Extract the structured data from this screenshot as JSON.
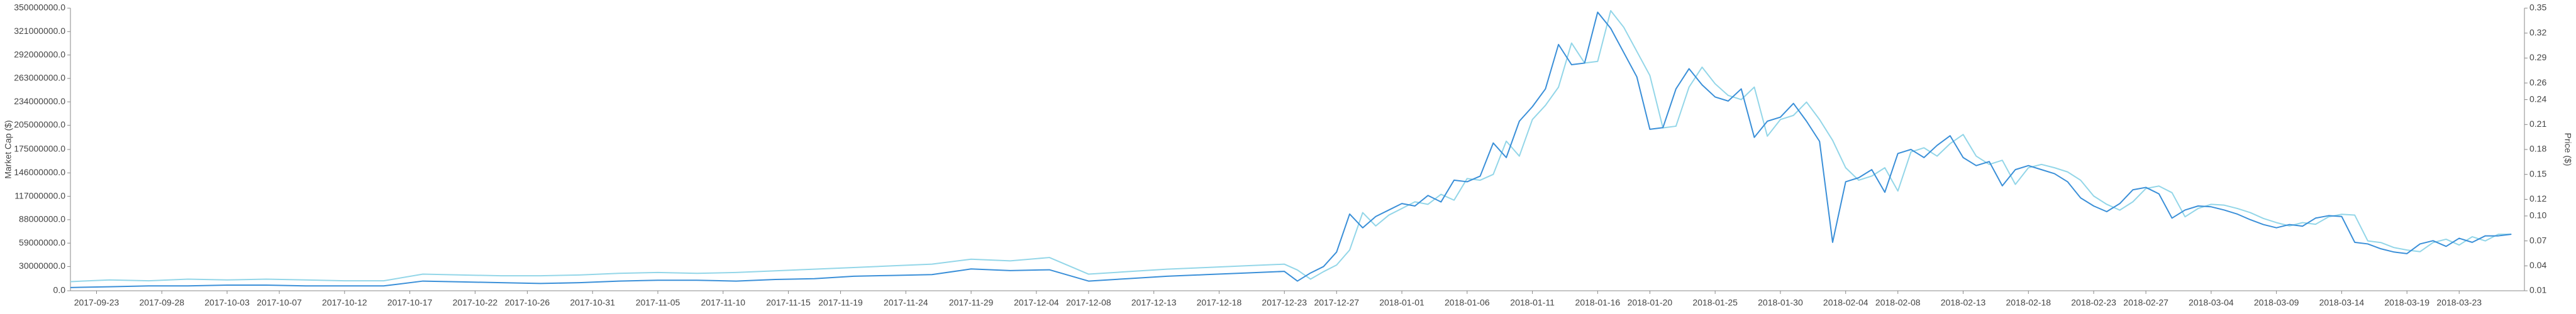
{
  "chart_data": {
    "type": "line",
    "y_label": "Market Cap ($)",
    "y2_label": "Price ($)",
    "grid": false,
    "xlim": [
      "2017-09-21",
      "2018-03-28"
    ],
    "xticks": [
      "2017-09-23",
      "2017-09-28",
      "2017-10-03",
      "2017-10-07",
      "2017-10-12",
      "2017-10-17",
      "2017-10-22",
      "2017-10-26",
      "2017-10-31",
      "2017-11-05",
      "2017-11-10",
      "2017-11-15",
      "2017-11-19",
      "2017-11-24",
      "2017-11-29",
      "2017-12-04",
      "2017-12-08",
      "2017-12-13",
      "2017-12-18",
      "2017-12-23",
      "2017-12-27",
      "2018-01-01",
      "2018-01-06",
      "2018-01-11",
      "2018-01-16",
      "2018-01-20",
      "2018-01-25",
      "2018-01-30",
      "2018-02-04",
      "2018-02-08",
      "2018-02-13",
      "2018-02-18",
      "2018-02-23",
      "2018-02-27",
      "2018-03-04",
      "2018-03-09",
      "2018-03-14",
      "2018-03-19",
      "2018-03-23"
    ],
    "ylim": [
      0,
      350000000
    ],
    "yticks": [
      {
        "value": 0,
        "label": "0.0"
      },
      {
        "value": 30000000,
        "label": "30000000.0"
      },
      {
        "value": 59000000,
        "label": "59000000.0"
      },
      {
        "value": 88000000,
        "label": "88000000.0"
      },
      {
        "value": 117000000,
        "label": "117000000.0"
      },
      {
        "value": 146000000,
        "label": "146000000.0"
      },
      {
        "value": 175000000,
        "label": "175000000.0"
      },
      {
        "value": 205000000,
        "label": "205000000.0"
      },
      {
        "value": 234000000,
        "label": "234000000.0"
      },
      {
        "value": 263000000,
        "label": "263000000.0"
      },
      {
        "value": 292000000,
        "label": "292000000.0"
      },
      {
        "value": 321000000,
        "label": "321000000.0"
      },
      {
        "value": 350000000,
        "label": "350000000.0"
      }
    ],
    "y2lim": [
      0.01,
      0.35
    ],
    "y2ticks": [
      0.01,
      0.04,
      0.07,
      {
        "value": 0.1,
        "label": "0.10"
      },
      0.12,
      0.15,
      0.18,
      0.21,
      0.24,
      0.26,
      0.29,
      0.32,
      0.35
    ],
    "x": [
      "2017-09-21",
      "2017-09-24",
      "2017-09-27",
      "2017-09-30",
      "2017-10-03",
      "2017-10-06",
      "2017-10-09",
      "2017-10-12",
      "2017-10-15",
      "2017-10-18",
      "2017-10-21",
      "2017-10-24",
      "2017-10-27",
      "2017-10-30",
      "2017-11-02",
      "2017-11-05",
      "2017-11-08",
      "2017-11-11",
      "2017-11-14",
      "2017-11-17",
      "2017-11-20",
      "2017-11-23",
      "2017-11-26",
      "2017-11-29",
      "2017-12-02",
      "2017-12-05",
      "2017-12-08",
      "2017-12-11",
      "2017-12-14",
      "2017-12-17",
      "2017-12-20",
      "2017-12-23",
      "2017-12-24",
      "2017-12-25",
      "2017-12-26",
      "2017-12-27",
      "2017-12-28",
      "2017-12-29",
      "2017-12-30",
      "2017-12-31",
      "2018-01-01",
      "2018-01-02",
      "2018-01-03",
      "2018-01-04",
      "2018-01-05",
      "2018-01-06",
      "2018-01-07",
      "2018-01-08",
      "2018-01-09",
      "2018-01-10",
      "2018-01-11",
      "2018-01-12",
      "2018-01-13",
      "2018-01-14",
      "2018-01-15",
      "2018-01-16",
      "2018-01-17",
      "2018-01-18",
      "2018-01-19",
      "2018-01-20",
      "2018-01-21",
      "2018-01-22",
      "2018-01-23",
      "2018-01-24",
      "2018-01-25",
      "2018-01-26",
      "2018-01-27",
      "2018-01-28",
      "2018-01-29",
      "2018-01-30",
      "2018-01-31",
      "2018-02-01",
      "2018-02-02",
      "2018-02-03",
      "2018-02-04",
      "2018-02-05",
      "2018-02-06",
      "2018-02-07",
      "2018-02-08",
      "2018-02-09",
      "2018-02-10",
      "2018-02-11",
      "2018-02-12",
      "2018-02-13",
      "2018-02-14",
      "2018-02-15",
      "2018-02-16",
      "2018-02-17",
      "2018-02-18",
      "2018-02-19",
      "2018-02-20",
      "2018-02-21",
      "2018-02-22",
      "2018-02-23",
      "2018-02-24",
      "2018-02-25",
      "2018-02-26",
      "2018-02-27",
      "2018-02-28",
      "2018-03-01",
      "2018-03-02",
      "2018-03-03",
      "2018-03-04",
      "2018-03-05",
      "2018-03-06",
      "2018-03-07",
      "2018-03-08",
      "2018-03-09",
      "2018-03-10",
      "2018-03-11",
      "2018-03-12",
      "2018-03-13",
      "2018-03-14",
      "2018-03-15",
      "2018-03-16",
      "2018-03-17",
      "2018-03-18",
      "2018-03-19",
      "2018-03-20",
      "2018-03-21",
      "2018-03-22",
      "2018-03-23",
      "2018-03-24",
      "2018-03-25",
      "2018-03-26",
      "2018-03-27"
    ],
    "series": [
      {
        "color": "#93d6e8",
        "axis": "y2",
        "values": [
          0.021,
          0.023,
          0.022,
          0.024,
          0.023,
          0.024,
          0.023,
          0.022,
          0.022,
          0.03,
          0.029,
          0.028,
          0.028,
          0.029,
          0.031,
          0.032,
          0.031,
          0.032,
          0.034,
          0.036,
          0.038,
          0.04,
          0.042,
          0.048,
          0.046,
          0.05,
          0.03,
          0.033,
          0.036,
          0.038,
          0.04,
          0.042,
          0.035,
          0.024,
          0.033,
          0.041,
          0.059,
          0.104,
          0.088,
          0.101,
          0.109,
          0.117,
          0.114,
          0.126,
          0.119,
          0.145,
          0.143,
          0.15,
          0.19,
          0.172,
          0.216,
          0.233,
          0.255,
          0.308,
          0.284,
          0.286,
          0.347,
          0.327,
          0.298,
          0.269,
          0.206,
          0.208,
          0.255,
          0.279,
          0.259,
          0.245,
          0.24,
          0.255,
          0.196,
          0.216,
          0.221,
          0.237,
          0.216,
          0.191,
          0.158,
          0.143,
          0.148,
          0.158,
          0.13,
          0.177,
          0.182,
          0.172,
          0.187,
          0.198,
          0.172,
          0.162,
          0.167,
          0.138,
          0.158,
          0.162,
          0.158,
          0.153,
          0.143,
          0.124,
          0.114,
          0.107,
          0.117,
          0.133,
          0.136,
          0.128,
          0.099,
          0.109,
          0.114,
          0.113,
          0.109,
          0.104,
          0.097,
          0.092,
          0.088,
          0.092,
          0.09,
          0.099,
          0.102,
          0.101,
          0.07,
          0.068,
          0.062,
          0.059,
          0.057,
          0.068,
          0.072,
          0.065,
          0.075,
          0.07,
          0.078,
          0.078
        ]
      },
      {
        "color": "#3a8fd8",
        "axis": "y",
        "values": [
          4000000,
          5000000,
          6000000,
          6000000,
          7000000,
          7000000,
          6000000,
          6000000,
          6000000,
          12000000,
          11000000,
          10000000,
          9000000,
          10000000,
          12000000,
          13000000,
          13000000,
          12000000,
          14000000,
          15000000,
          18000000,
          19000000,
          20000000,
          27000000,
          25000000,
          26000000,
          12000000,
          15000000,
          18000000,
          20000000,
          22000000,
          24000000,
          12000000,
          22000000,
          30000000,
          48000000,
          95000000,
          78000000,
          92000000,
          100000000,
          108000000,
          105000000,
          118000000,
          110000000,
          137000000,
          135000000,
          142000000,
          183000000,
          165000000,
          210000000,
          228000000,
          250000000,
          305000000,
          280000000,
          282000000,
          345000000,
          325000000,
          295000000,
          265000000,
          200000000,
          202000000,
          250000000,
          275000000,
          255000000,
          240000000,
          235000000,
          250000000,
          190000000,
          210000000,
          215000000,
          232000000,
          210000000,
          185000000,
          60000000,
          135000000,
          140000000,
          150000000,
          122000000,
          170000000,
          175000000,
          165000000,
          180000000,
          192000000,
          165000000,
          155000000,
          160000000,
          130000000,
          150000000,
          155000000,
          150000000,
          145000000,
          135000000,
          115000000,
          105000000,
          98000000,
          108000000,
          125000000,
          128000000,
          120000000,
          90000000,
          100000000,
          105000000,
          104000000,
          100000000,
          95000000,
          88000000,
          82000000,
          78000000,
          82000000,
          80000000,
          90000000,
          93000000,
          92000000,
          60000000,
          58000000,
          52000000,
          48000000,
          46000000,
          58000000,
          62000000,
          55000000,
          65000000,
          60000000,
          68000000,
          68000000,
          70000000
        ]
      }
    ]
  }
}
